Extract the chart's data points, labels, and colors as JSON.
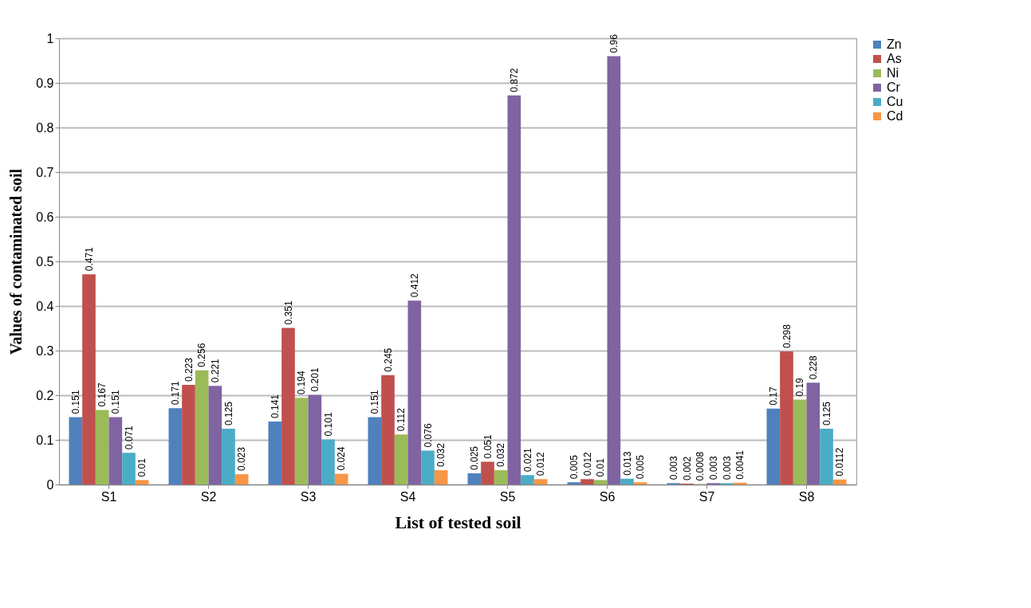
{
  "chart_data": {
    "type": "bar",
    "xlabel": "List  of tested soil",
    "ylabel": "Values of contaminated soil",
    "categories": [
      "S1",
      "S2",
      "S3",
      "S4",
      "S5",
      "S6",
      "S7",
      "S8"
    ],
    "series": [
      {
        "name": "Zn",
        "color": "#4f81bd",
        "values": [
          0.151,
          0.171,
          0.141,
          0.151,
          0.025,
          0.005,
          0.003,
          0.17
        ]
      },
      {
        "name": "As",
        "color": "#c0504d",
        "values": [
          0.471,
          0.223,
          0.351,
          0.245,
          0.051,
          0.012,
          0.002,
          0.298
        ]
      },
      {
        "name": "Ni",
        "color": "#9bbb59",
        "values": [
          0.167,
          0.256,
          0.194,
          0.112,
          0.032,
          0.01,
          0.0008,
          0.19
        ]
      },
      {
        "name": "Cr",
        "color": "#8064a2",
        "values": [
          0.151,
          0.221,
          0.201,
          0.412,
          0.872,
          0.96,
          0.003,
          0.228
        ]
      },
      {
        "name": "Cu",
        "color": "#4bacc6",
        "values": [
          0.071,
          0.125,
          0.101,
          0.076,
          0.021,
          0.013,
          0.003,
          0.125
        ]
      },
      {
        "name": "Cd",
        "color": "#f79646",
        "values": [
          0.01,
          0.023,
          0.024,
          0.032,
          0.012,
          0.005,
          0.0041,
          0.0112
        ]
      }
    ],
    "ylim": [
      0,
      1
    ],
    "yticks": [
      0,
      0.1,
      0.2,
      0.3,
      0.4,
      0.5,
      0.6,
      0.7,
      0.8,
      0.9,
      1
    ],
    "grid": "y",
    "legend": "right",
    "data_labels": true
  }
}
